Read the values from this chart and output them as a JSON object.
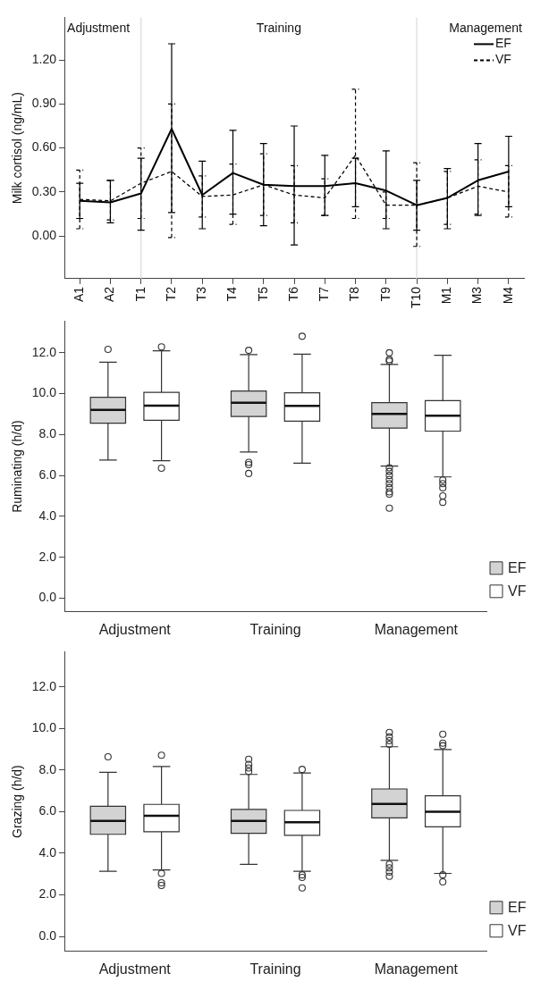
{
  "chart_data": [
    {
      "type": "line",
      "ylabel": "Milk cortisol (ng/mL)",
      "categories": [
        "A1",
        "A2",
        "T1",
        "T2",
        "T3",
        "T4",
        "T5",
        "T6",
        "T7",
        "T8",
        "T9",
        "T10",
        "M1",
        "M3",
        "M4"
      ],
      "ylim": [
        -0.29,
        1.49
      ],
      "yticks": [
        {
          "value": 0,
          "label": "0.00"
        },
        {
          "value": 0.3,
          "label": "0.30"
        },
        {
          "value": 0.6,
          "label": "0.60"
        },
        {
          "value": 0.9,
          "label": "0.90"
        },
        {
          "value": 1.2,
          "label": "1.20"
        }
      ],
      "grid": false,
      "marker": "none",
      "legend": "top right",
      "series": [
        {
          "name": "EF",
          "color": "#000000",
          "line_style": "solid",
          "values": [
            0.24,
            0.23,
            0.29,
            0.73,
            0.28,
            0.43,
            0.35,
            0.34,
            0.34,
            0.36,
            0.31,
            0.21,
            0.26,
            0.38,
            0.44
          ],
          "errors": [
            [
              0.12,
              0.36
            ],
            [
              0.09,
              0.38
            ],
            [
              0.04,
              0.53
            ],
            [
              0.16,
              1.31
            ],
            [
              0.05,
              0.51
            ],
            [
              0.15,
              0.72
            ],
            [
              0.07,
              0.63
            ],
            [
              -0.06,
              0.75
            ],
            [
              0.14,
              0.55
            ],
            [
              0.2,
              0.53
            ],
            [
              0.05,
              0.58
            ],
            [
              0.04,
              0.38
            ],
            [
              0.05,
              0.46
            ],
            [
              0.14,
              0.63
            ],
            [
              0.2,
              0.68
            ]
          ]
        },
        {
          "name": "VF",
          "color": "#000000",
          "line_style": "dashed",
          "values": [
            0.25,
            0.24,
            0.36,
            0.44,
            0.27,
            0.28,
            0.35,
            0.28,
            0.26,
            0.55,
            0.21,
            0.21,
            0.26,
            0.34,
            0.3
          ],
          "errors": [
            [
              0.05,
              0.45
            ],
            [
              0.11,
              0.38
            ],
            [
              0.12,
              0.6
            ],
            [
              -0.01,
              0.9
            ],
            [
              0.13,
              0.41
            ],
            [
              0.08,
              0.49
            ],
            [
              0.14,
              0.56
            ],
            [
              0.09,
              0.48
            ],
            [
              0.14,
              0.39
            ],
            [
              0.12,
              1.0
            ],
            [
              0.12,
              0.3
            ],
            [
              -0.07,
              0.5
            ],
            [
              0.08,
              0.44
            ],
            [
              0.15,
              0.52
            ],
            [
              0.13,
              0.48
            ]
          ]
        }
      ],
      "ref_lines": [
        {
          "axis": "x",
          "value": "T1",
          "color": "#d9d9d9"
        },
        {
          "axis": "x",
          "value": "T10",
          "color": "#d9d9d9"
        }
      ],
      "annotations": [
        "Adjustment",
        "Training",
        "Management"
      ]
    },
    {
      "type": "box",
      "ylabel": "Ruminating (h/d)",
      "categories": [
        "Adjustment",
        "Training",
        "Management"
      ],
      "ylim": [
        -0.67,
        13.55
      ],
      "yticks": [
        {
          "value": 0,
          "label": "0.0"
        },
        {
          "value": 2,
          "label": "2.0"
        },
        {
          "value": 4,
          "label": "4.0"
        },
        {
          "value": 6,
          "label": "6.0"
        },
        {
          "value": 8,
          "label": "8.0"
        },
        {
          "value": 10,
          "label": "10.0"
        },
        {
          "value": 12,
          "label": "12.0"
        }
      ],
      "grid": false,
      "legend": "bottom right",
      "series": [
        {
          "name": "EF",
          "color": "#d3d3d3",
          "boxes": [
            {
              "low": 6.76,
              "q1": 8.56,
              "median": 9.21,
              "q3": 9.83,
              "high": 11.54,
              "outliers": [
                12.17
              ]
            },
            {
              "low": 7.15,
              "q1": 8.89,
              "median": 9.56,
              "q3": 10.13,
              "high": 11.91,
              "outliers": [
                12.12,
                6.64,
                6.53,
                6.1
              ]
            },
            {
              "low": 6.46,
              "q1": 8.32,
              "median": 9.01,
              "q3": 9.56,
              "high": 11.43,
              "outliers": [
                12.0,
                11.67,
                11.59,
                6.38,
                6.2,
                6.0,
                5.8,
                5.6,
                5.4,
                5.2,
                5.09,
                4.4
              ]
            }
          ]
        },
        {
          "name": "VF",
          "color": "#ffffff",
          "boxes": [
            {
              "low": 6.72,
              "q1": 8.7,
              "median": 9.42,
              "q3": 10.07,
              "high": 12.1,
              "outliers": [
                12.29,
                6.36
              ]
            },
            {
              "low": 6.6,
              "q1": 8.66,
              "median": 9.4,
              "q3": 10.04,
              "high": 11.93,
              "outliers": [
                12.81
              ]
            },
            {
              "low": 5.93,
              "q1": 8.17,
              "median": 8.92,
              "q3": 9.66,
              "high": 11.88,
              "outliers": [
                5.78,
                5.6,
                5.4,
                5.0,
                4.69
              ]
            }
          ]
        }
      ]
    },
    {
      "type": "box",
      "ylabel": "Grazing (h/d)",
      "categories": [
        "Adjustment",
        "Training",
        "Management"
      ],
      "ylim": [
        -0.72,
        13.69
      ],
      "yticks": [
        {
          "value": 0,
          "label": "0.0"
        },
        {
          "value": 2,
          "label": "2.0"
        },
        {
          "value": 4,
          "label": "4.0"
        },
        {
          "value": 6,
          "label": "6.0"
        },
        {
          "value": 8,
          "label": "8.0"
        },
        {
          "value": 10,
          "label": "10.0"
        },
        {
          "value": 12,
          "label": "12.0"
        }
      ],
      "grid": false,
      "legend": "bottom right",
      "series": [
        {
          "name": "EF",
          "color": "#d3d3d3",
          "boxes": [
            {
              "low": 3.13,
              "q1": 4.91,
              "median": 5.56,
              "q3": 6.26,
              "high": 7.89,
              "outliers": [
                8.64
              ]
            },
            {
              "low": 3.47,
              "q1": 4.96,
              "median": 5.56,
              "q3": 6.11,
              "high": 7.79,
              "outliers": [
                8.52,
                8.27,
                8.1,
                7.93
              ]
            },
            {
              "low": 3.66,
              "q1": 5.7,
              "median": 6.37,
              "q3": 7.09,
              "high": 9.12,
              "outliers": [
                9.81,
                9.59,
                9.41,
                9.24,
                3.47,
                3.3,
                3.1,
                2.89
              ]
            }
          ]
        },
        {
          "name": "VF",
          "color": "#ffffff",
          "boxes": [
            {
              "low": 3.2,
              "q1": 5.03,
              "median": 5.8,
              "q3": 6.35,
              "high": 8.17,
              "outliers": [
                8.71,
                3.03,
                2.58,
                2.45
              ]
            },
            {
              "low": 3.13,
              "q1": 4.86,
              "median": 5.49,
              "q3": 6.06,
              "high": 7.86,
              "outliers": [
                8.03,
                2.96,
                2.84,
                2.33
              ]
            },
            {
              "low": 3.03,
              "q1": 5.27,
              "median": 5.99,
              "q3": 6.76,
              "high": 8.99,
              "outliers": [
                9.72,
                9.29,
                9.17,
                2.96,
                2.62
              ]
            }
          ]
        }
      ]
    }
  ]
}
